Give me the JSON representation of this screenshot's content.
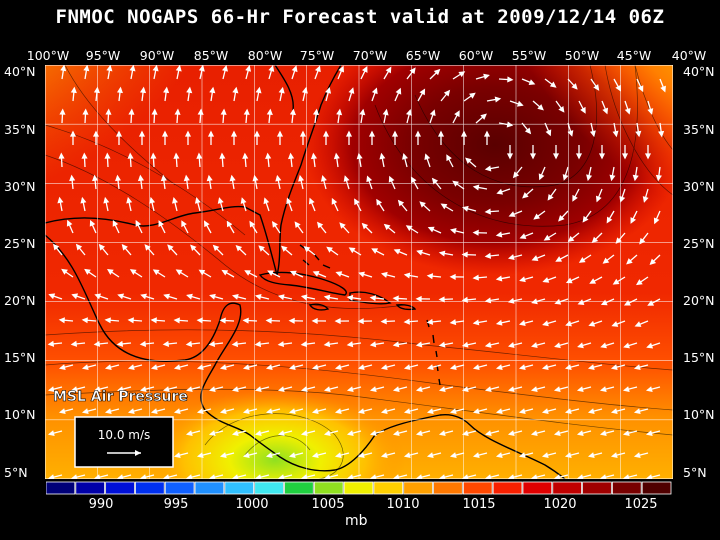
{
  "title": "FNMOC NOGAPS 66-Hr Forecast valid at 2009/12/14 06Z",
  "field_label": "MSL Air Pressure",
  "scale_vector_label": "10.0 m/s",
  "units": "mb",
  "lon_labels": [
    "100°W",
    "95°W",
    "90°W",
    "85°W",
    "80°W",
    "75°W",
    "70°W",
    "65°W",
    "60°W",
    "55°W",
    "50°W",
    "45°W",
    "40°W"
  ],
  "lat_labels": [
    "40°N",
    "35°N",
    "30°N",
    "25°N",
    "20°N",
    "15°N",
    "10°N",
    "5°N"
  ],
  "colorbar": {
    "tick_labels": [
      "990",
      "995",
      "1000",
      "1005",
      "1010",
      "1015",
      "1020",
      "1025"
    ],
    "colors": [
      "#000078",
      "#0000a8",
      "#0010d8",
      "#0030f0",
      "#1060ff",
      "#2090ff",
      "#30c0ff",
      "#40e8f0",
      "#20d040",
      "#90e020",
      "#f0f000",
      "#ffd000",
      "#ffa000",
      "#ff7800",
      "#ff4800",
      "#f82000",
      "#e00000",
      "#c00000",
      "#a00000",
      "#780000",
      "#500000"
    ]
  },
  "colors": {
    "background": "#000000",
    "land_outline": "#000000",
    "wind_vectors": "#ffffff",
    "grid": "#ffffff"
  }
}
